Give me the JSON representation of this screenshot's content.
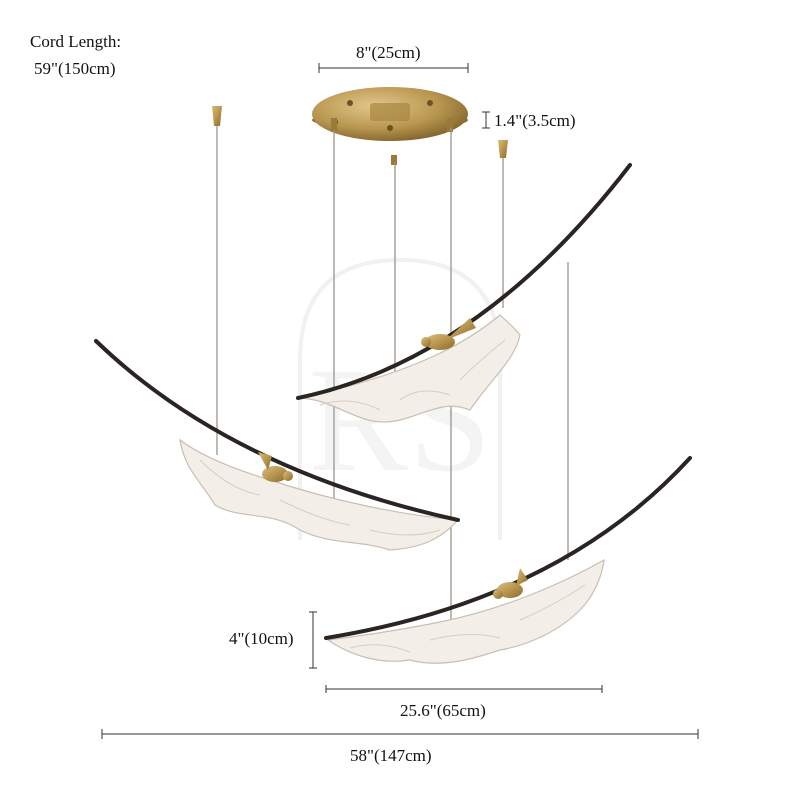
{
  "annotations": {
    "cord_length_label": "Cord Length:",
    "cord_length_value": "59\"(150cm)",
    "canopy_diameter": "8\"(25cm)",
    "canopy_height": "1.4\"(3.5cm)",
    "fixture_height": "4\"(10cm)",
    "fixture_width": "25.6\"(65cm)",
    "overall_width": "58\"(147cm)"
  },
  "watermark_text": "RS",
  "colors": {
    "brass": "#b8964f",
    "brass_dark": "#8a6b2e",
    "arc": "#2a2522",
    "cord": "#9c9488",
    "feather_stroke": "#c9beb2",
    "feather_fill": "#f3eee8",
    "dimension_line": "#333333",
    "watermark": "#e6e6e6"
  }
}
